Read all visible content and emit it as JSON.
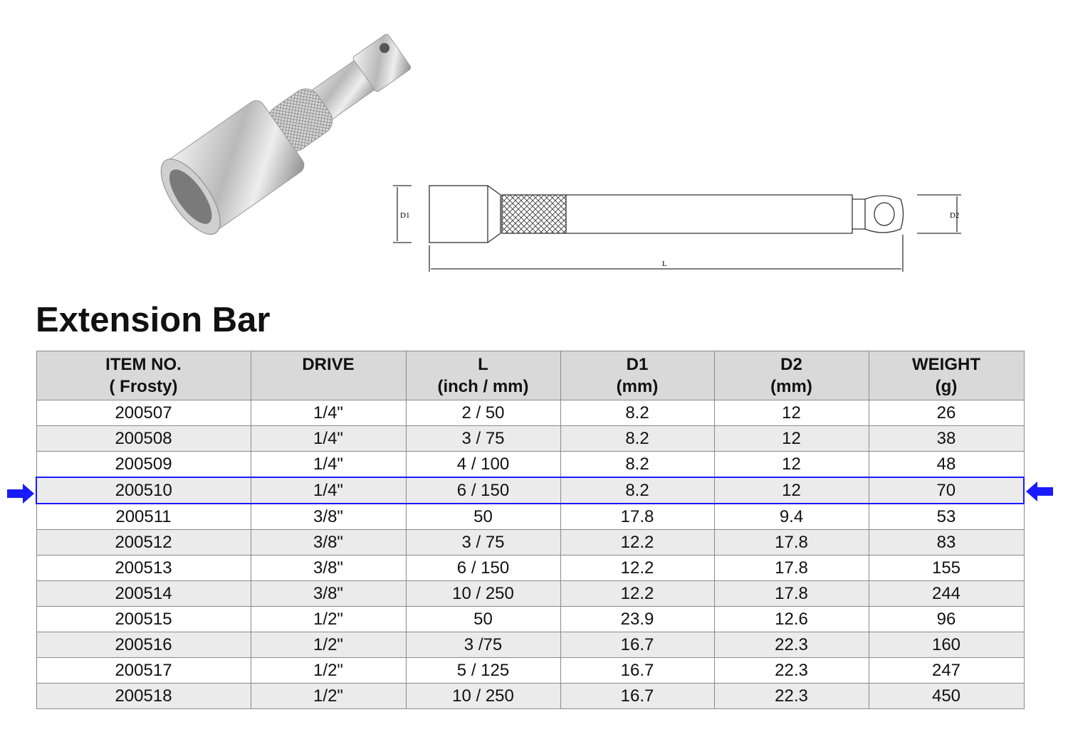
{
  "title": "Extension Bar",
  "drawing_labels": {
    "d1": "D1",
    "d2": "D2",
    "l": "L"
  },
  "table": {
    "headers": [
      {
        "line1": "ITEM NO.",
        "line2": "( Frosty)"
      },
      {
        "line1": "DRIVE",
        "line2": ""
      },
      {
        "line1": "L",
        "line2": "(inch / mm)"
      },
      {
        "line1": "D1",
        "line2": "(mm)"
      },
      {
        "line1": "D2",
        "line2": "(mm)"
      },
      {
        "line1": "WEIGHT",
        "line2": "(g)"
      }
    ],
    "rows": [
      [
        "200507",
        "1/4\"",
        "2 / 50",
        "8.2",
        "12",
        "26"
      ],
      [
        "200508",
        "1/4\"",
        "3 / 75",
        "8.2",
        "12",
        "38"
      ],
      [
        "200509",
        "1/4\"",
        "4 / 100",
        "8.2",
        "12",
        "48"
      ],
      [
        "200510",
        "1/4\"",
        "6 / 150",
        "8.2",
        "12",
        "70"
      ],
      [
        "200511",
        "3/8\"",
        "50",
        "17.8",
        "9.4",
        "53"
      ],
      [
        "200512",
        "3/8\"",
        "3 / 75",
        "12.2",
        "17.8",
        "83"
      ],
      [
        "200513",
        "3/8\"",
        "6 / 150",
        "12.2",
        "17.8",
        "155"
      ],
      [
        "200514",
        "3/8\"",
        "10 / 250",
        "12.2",
        "17.8",
        "244"
      ],
      [
        "200515",
        "1/2\"",
        "50",
        "23.9",
        "12.6",
        "96"
      ],
      [
        "200516",
        "1/2\"",
        "3 /75",
        "16.7",
        "22.3",
        "160"
      ],
      [
        "200517",
        "1/2\"",
        "5 / 125",
        "16.7",
        "22.3",
        "247"
      ],
      [
        "200518",
        "1/2\"",
        "10 / 250",
        "16.7",
        "22.3",
        "450"
      ]
    ],
    "highlighted_row": "200510"
  },
  "colors": {
    "highlight": "#1a1aff",
    "header_bg": "#d9d9d9",
    "alt_row_bg": "#ebebeb"
  }
}
